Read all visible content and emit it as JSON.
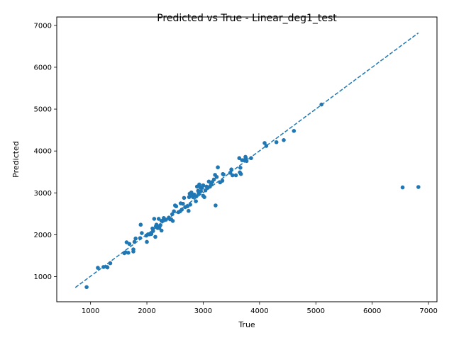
{
  "chart_data": {
    "type": "scatter",
    "title": "Predicted vs True - Linear_deg1_test",
    "xlabel": "True",
    "ylabel": "Predicted",
    "xlim": [
      400,
      7150
    ],
    "ylim": [
      400,
      7200
    ],
    "xticks": [
      1000,
      2000,
      3000,
      4000,
      5000,
      6000,
      7000
    ],
    "yticks": [
      1000,
      2000,
      3000,
      4000,
      5000,
      6000,
      7000
    ],
    "grid": false,
    "point_color": "#1f77b4",
    "reference_line": {
      "style": "dashed",
      "color": "#1f77b4",
      "from": [
        730,
        740
      ],
      "to": [
        6820,
        6820
      ]
    },
    "series": [
      {
        "points": [
          [
            930,
            750
          ],
          [
            1130,
            1210
          ],
          [
            1230,
            1230
          ],
          [
            1290,
            1230
          ],
          [
            1300,
            1220
          ],
          [
            1350,
            1320
          ],
          [
            1600,
            1560
          ],
          [
            1620,
            1580
          ],
          [
            1640,
            1820
          ],
          [
            1670,
            1570
          ],
          [
            1690,
            1780
          ],
          [
            1760,
            1600
          ],
          [
            1760,
            1650
          ],
          [
            1780,
            1830
          ],
          [
            1800,
            1910
          ],
          [
            1880,
            1920
          ],
          [
            1890,
            2240
          ],
          [
            1910,
            2040
          ],
          [
            1990,
            1980
          ],
          [
            2000,
            1830
          ],
          [
            2020,
            2010
          ],
          [
            2050,
            2010
          ],
          [
            2080,
            2020
          ],
          [
            2100,
            2150
          ],
          [
            2110,
            2090
          ],
          [
            2130,
            2380
          ],
          [
            2150,
            1950
          ],
          [
            2160,
            2200
          ],
          [
            2170,
            2240
          ],
          [
            2190,
            2160
          ],
          [
            2210,
            2380
          ],
          [
            2220,
            2160
          ],
          [
            2230,
            2210
          ],
          [
            2240,
            2230
          ],
          [
            2260,
            2100
          ],
          [
            2260,
            2330
          ],
          [
            2280,
            2340
          ],
          [
            2300,
            2400
          ],
          [
            2310,
            2350
          ],
          [
            2340,
            2360
          ],
          [
            2390,
            2410
          ],
          [
            2410,
            2370
          ],
          [
            2430,
            2370
          ],
          [
            2450,
            2490
          ],
          [
            2460,
            2330
          ],
          [
            2480,
            2560
          ],
          [
            2500,
            2700
          ],
          [
            2520,
            2680
          ],
          [
            2560,
            2540
          ],
          [
            2590,
            2560
          ],
          [
            2600,
            2750
          ],
          [
            2620,
            2600
          ],
          [
            2640,
            2740
          ],
          [
            2660,
            2880
          ],
          [
            2680,
            2660
          ],
          [
            2720,
            2680
          ],
          [
            2740,
            2570
          ],
          [
            2750,
            2900
          ],
          [
            2760,
            2980
          ],
          [
            2770,
            2720
          ],
          [
            2790,
            3010
          ],
          [
            2800,
            2940
          ],
          [
            2820,
            2900
          ],
          [
            2840,
            2960
          ],
          [
            2870,
            2800
          ],
          [
            2880,
            2920
          ],
          [
            2890,
            3150
          ],
          [
            2910,
            3050
          ],
          [
            2920,
            2990
          ],
          [
            2930,
            3200
          ],
          [
            2950,
            3130
          ],
          [
            2960,
            3040
          ],
          [
            2980,
            3120
          ],
          [
            3000,
            3180
          ],
          [
            3000,
            2930
          ],
          [
            3020,
            2900
          ],
          [
            3040,
            3060
          ],
          [
            3060,
            3150
          ],
          [
            3080,
            3120
          ],
          [
            3100,
            3270
          ],
          [
            3120,
            3150
          ],
          [
            3140,
            3200
          ],
          [
            3160,
            3260
          ],
          [
            3190,
            3320
          ],
          [
            3210,
            3430
          ],
          [
            3220,
            2700
          ],
          [
            3240,
            3380
          ],
          [
            3260,
            3610
          ],
          [
            3300,
            3250
          ],
          [
            3340,
            3290
          ],
          [
            3350,
            3450
          ],
          [
            3360,
            3440
          ],
          [
            3480,
            3480
          ],
          [
            3500,
            3560
          ],
          [
            3520,
            3420
          ],
          [
            3580,
            3420
          ],
          [
            3640,
            3830
          ],
          [
            3650,
            3490
          ],
          [
            3660,
            3600
          ],
          [
            3670,
            3450
          ],
          [
            3690,
            3780
          ],
          [
            3720,
            3780
          ],
          [
            3750,
            3860
          ],
          [
            3760,
            3820
          ],
          [
            3770,
            3760
          ],
          [
            3850,
            3830
          ],
          [
            4090,
            4190
          ],
          [
            4120,
            4120
          ],
          [
            4300,
            4210
          ],
          [
            4430,
            4260
          ],
          [
            4610,
            4480
          ],
          [
            5100,
            5110
          ],
          [
            6540,
            3130
          ],
          [
            6820,
            3140
          ]
        ]
      }
    ]
  }
}
